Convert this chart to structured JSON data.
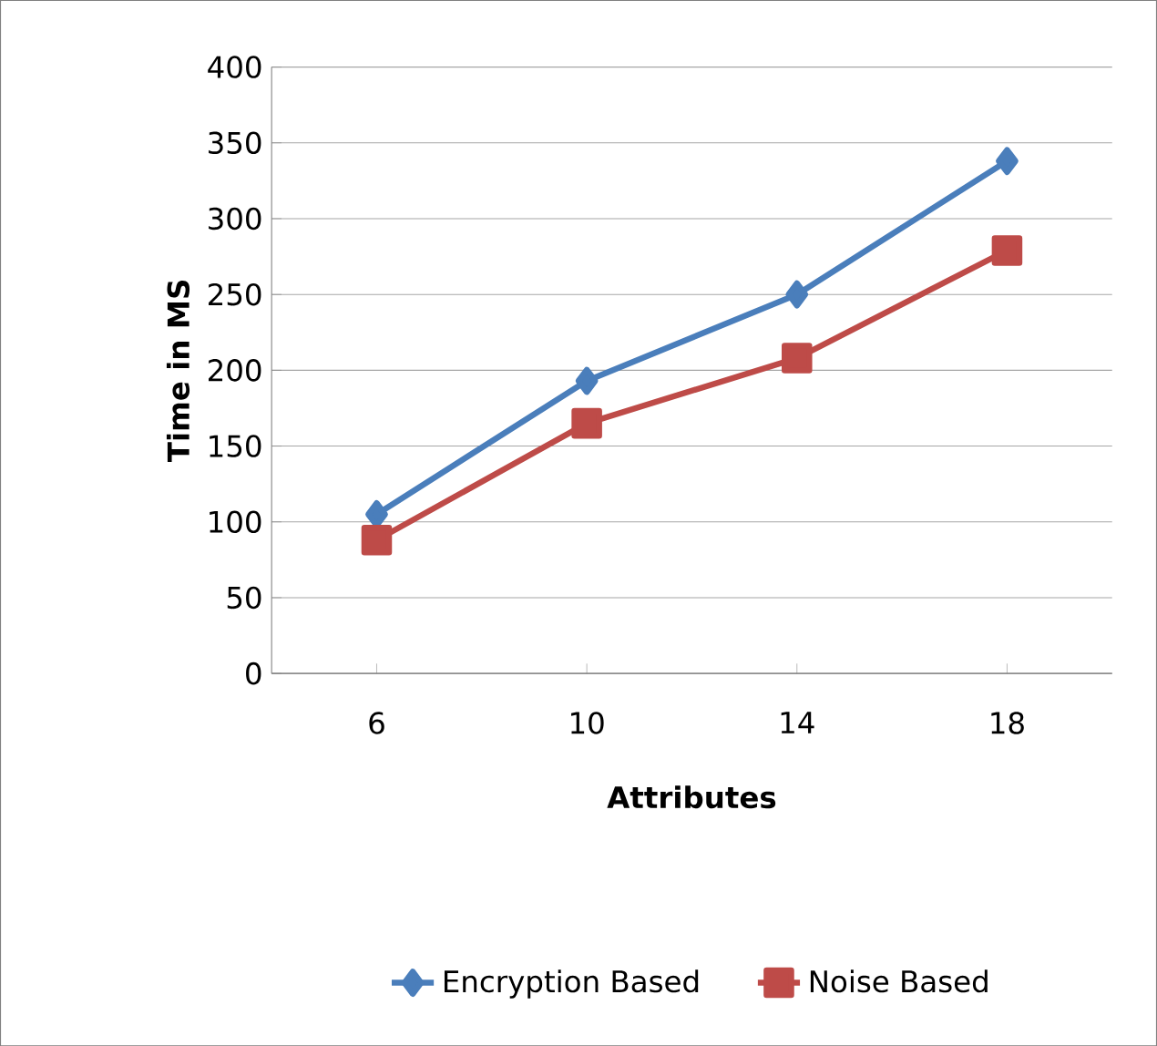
{
  "chart_data": {
    "type": "line",
    "xlabel": "Attributes",
    "ylabel": "Time in MS",
    "categories": [
      "6",
      "10",
      "14",
      "18"
    ],
    "series": [
      {
        "name": "Encryption Based",
        "color": "#4a7ebb",
        "marker": "diamond",
        "values": [
          105,
          193,
          250,
          338
        ]
      },
      {
        "name": "Noise Based",
        "color": "#be4b48",
        "marker": "square",
        "values": [
          88,
          165,
          208,
          279
        ]
      }
    ],
    "ylim": [
      0,
      400
    ],
    "yticks": [
      0,
      50,
      100,
      150,
      200,
      250,
      300,
      350,
      400
    ],
    "grid": "y",
    "legend": "bottom",
    "line_style": "solid"
  }
}
